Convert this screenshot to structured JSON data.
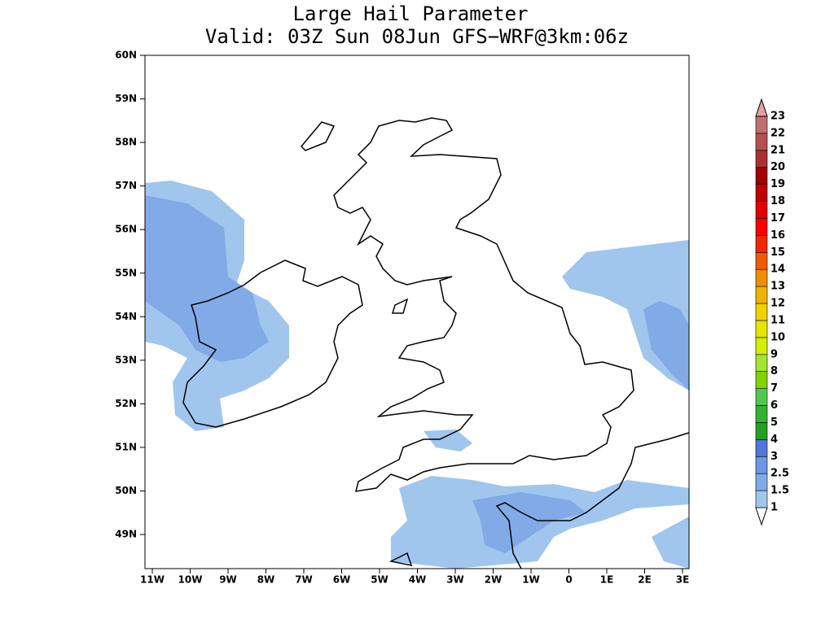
{
  "title": "Large Hail Parameter",
  "subtitle": "Valid: 03Z Sun 08Jun GFS−WRF@3km:06z",
  "map": {
    "lat_ticks": [
      {
        "value": 60,
        "label": "60N"
      },
      {
        "value": 59,
        "label": "59N"
      },
      {
        "value": 58,
        "label": "58N"
      },
      {
        "value": 57,
        "label": "57N"
      },
      {
        "value": 56,
        "label": "56N"
      },
      {
        "value": 55,
        "label": "55N"
      },
      {
        "value": 54,
        "label": "54N"
      },
      {
        "value": 53,
        "label": "53N"
      },
      {
        "value": 52,
        "label": "52N"
      },
      {
        "value": 51,
        "label": "51N"
      },
      {
        "value": 50,
        "label": "50N"
      },
      {
        "value": 49,
        "label": "49N"
      }
    ],
    "lon_ticks": [
      {
        "value": -11,
        "label": "11W"
      },
      {
        "value": -10,
        "label": "10W"
      },
      {
        "value": -9,
        "label": "9W"
      },
      {
        "value": -8,
        "label": "8W"
      },
      {
        "value": -7,
        "label": "7W"
      },
      {
        "value": -6,
        "label": "6W"
      },
      {
        "value": -5,
        "label": "5W"
      },
      {
        "value": -4,
        "label": "4W"
      },
      {
        "value": -3,
        "label": "3W"
      },
      {
        "value": -2,
        "label": "2W"
      },
      {
        "value": -1,
        "label": "1W"
      },
      {
        "value": 0,
        "label": "0"
      },
      {
        "value": 1,
        "label": "1E"
      },
      {
        "value": 2,
        "label": "2E"
      },
      {
        "value": 3,
        "label": "3E"
      }
    ],
    "colorbar": {
      "levels": [
        1,
        1.5,
        2.5,
        3,
        4,
        5,
        6,
        7,
        8,
        9,
        10,
        11,
        12,
        13,
        14,
        15,
        16,
        17,
        18,
        19,
        20,
        21,
        22,
        23
      ],
      "colors": [
        "#ffffff",
        "#a0c6ee",
        "#82aae6",
        "#6e96e4",
        "#4f78d8",
        "#22a022",
        "#32b432",
        "#50c850",
        "#82d200",
        "#a0e632",
        "#d2f000",
        "#e6e600",
        "#f0d200",
        "#f0b400",
        "#f08c00",
        "#f05a00",
        "#f02800",
        "#fa0000",
        "#e00000",
        "#c00000",
        "#a00000",
        "#a83232",
        "#b45050",
        "#c06e6e",
        "#e6a0a0"
      ]
    }
  }
}
